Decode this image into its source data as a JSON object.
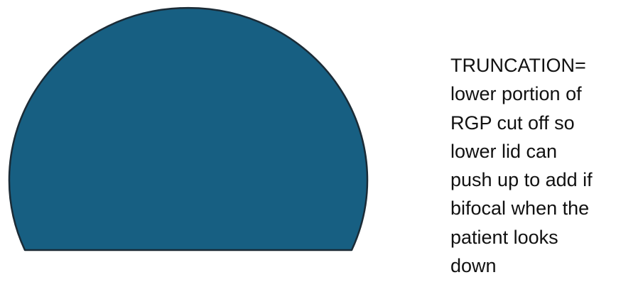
{
  "shape": {
    "fill": "#175f82",
    "stroke": "#1b2b36",
    "icon": "truncated-lens-shape"
  },
  "caption": {
    "lines": [
      "TRUNCATION=",
      "lower portion of",
      "RGP cut off so",
      "lower lid can",
      "push up to add if",
      "bifocal when the",
      "patient looks",
      "down"
    ]
  }
}
